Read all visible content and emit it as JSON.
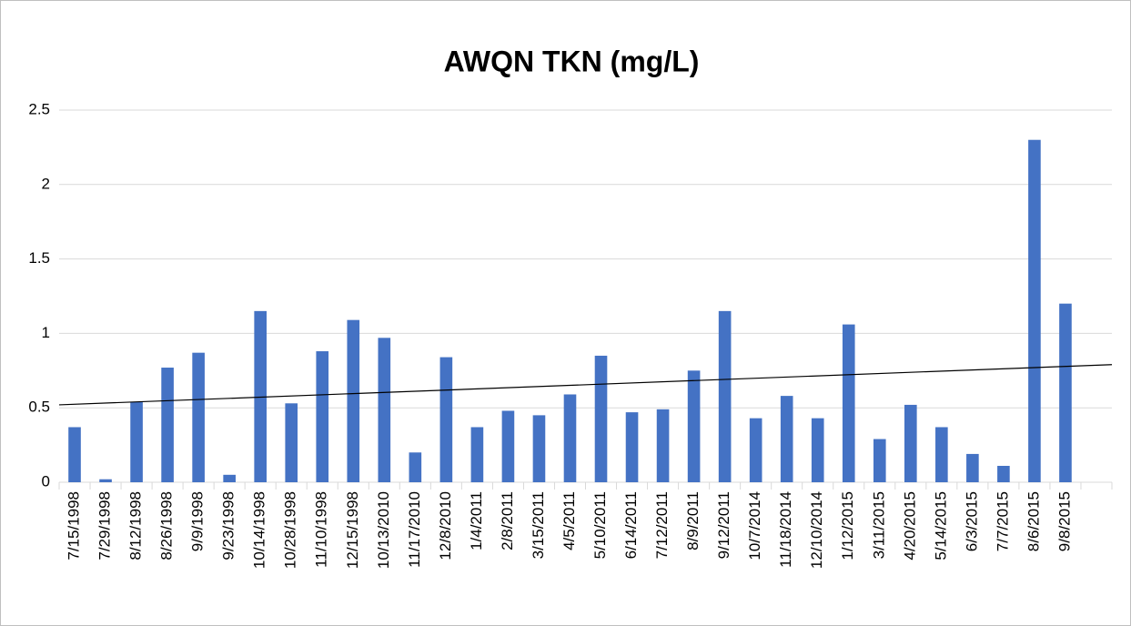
{
  "chart_data": {
    "type": "bar",
    "title": "AWQN TKN (mg/L)",
    "categories": [
      "7/15/1998",
      "7/29/1998",
      "8/12/1998",
      "8/26/1998",
      "9/9/1998",
      "9/23/1998",
      "10/14/1998",
      "10/28/1998",
      "11/10/1998",
      "12/15/1998",
      "10/13/2010",
      "11/17/2010",
      "12/8/2010",
      "1/4/2011",
      "2/8/2011",
      "3/15/2011",
      "4/5/2011",
      "5/10/2011",
      "6/14/2011",
      "7/12/2011",
      "8/9/2011",
      "9/12/2011",
      "10/7/2014",
      "11/18/2014",
      "12/10/2014",
      "1/12/2015",
      "3/11/2015",
      "4/20/2015",
      "5/14/2015",
      "6/3/2015",
      "7/7/2015",
      "8/6/2015",
      "9/8/2015",
      null
    ],
    "values": [
      0.37,
      0.02,
      0.54,
      0.77,
      0.87,
      0.05,
      1.15,
      0.53,
      0.88,
      1.09,
      0.97,
      0.2,
      0.84,
      0.37,
      0.48,
      0.45,
      0.59,
      0.85,
      0.47,
      0.49,
      0.75,
      1.15,
      0.43,
      0.58,
      0.43,
      1.06,
      0.29,
      0.52,
      0.37,
      0.19,
      0.11,
      2.3,
      1.2,
      null
    ],
    "color": "#4472c4",
    "trendline": {
      "start": 0.52,
      "end": 0.79,
      "color": "#000000"
    },
    "ylim": [
      0,
      2.5
    ],
    "yticks": [
      0,
      0.5,
      1,
      1.5,
      2,
      2.5
    ],
    "grid": true
  }
}
